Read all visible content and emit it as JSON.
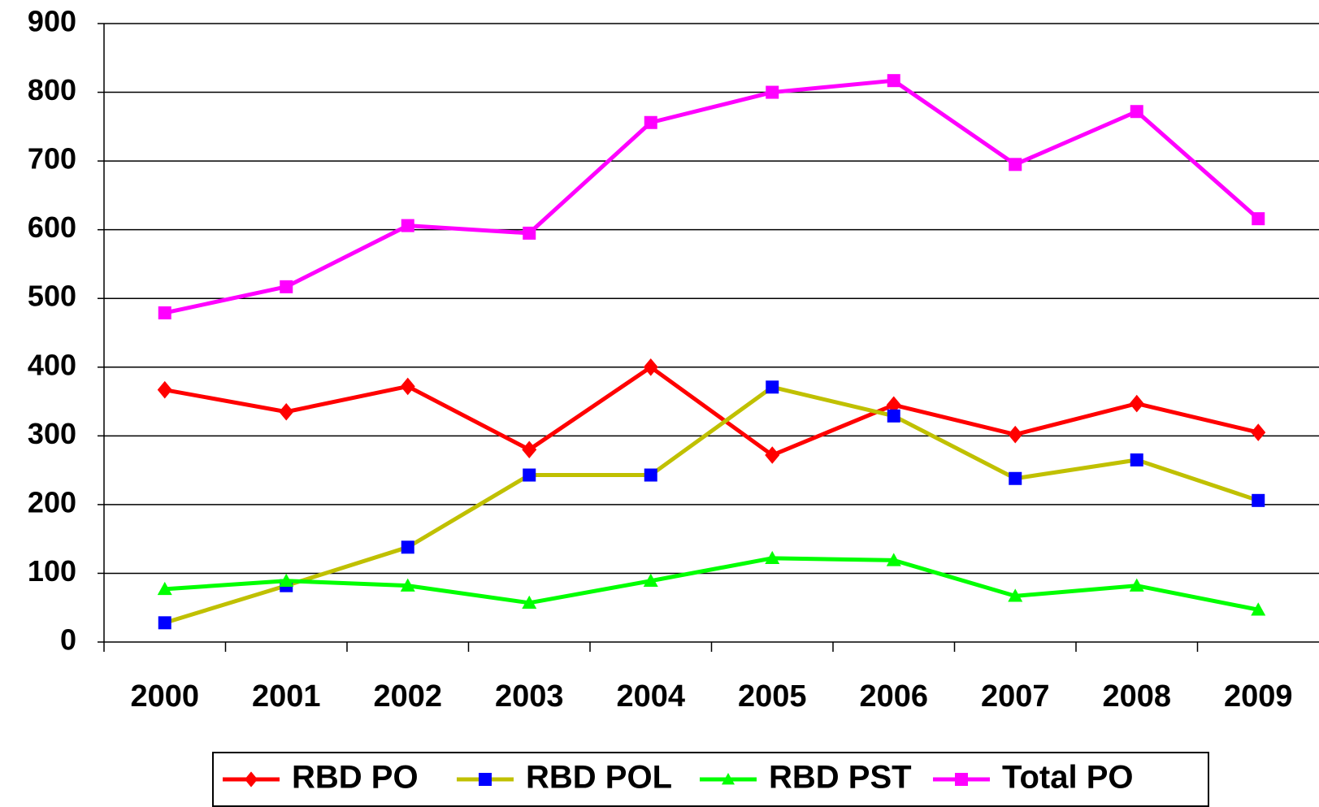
{
  "chart_data": {
    "type": "line",
    "categories": [
      "2000",
      "2001",
      "2002",
      "2003",
      "2004",
      "2005",
      "2006",
      "2007",
      "2008",
      "2009"
    ],
    "series": [
      {
        "name": "RBD PO",
        "color": "#ff0000",
        "marker": "diamond",
        "marker_color": "#ff0000",
        "values": [
          367,
          335,
          372,
          280,
          400,
          272,
          345,
          302,
          347,
          305
        ]
      },
      {
        "name": "RBD POL",
        "color": "#c0c000",
        "marker": "square",
        "marker_color": "#0000ff",
        "values": [
          28,
          82,
          138,
          243,
          243,
          371,
          329,
          238,
          265,
          206
        ]
      },
      {
        "name": "RBD PST",
        "color": "#00ff00",
        "marker": "triangle",
        "marker_color": "#00ff00",
        "values": [
          77,
          89,
          82,
          57,
          89,
          122,
          119,
          67,
          82,
          47
        ]
      },
      {
        "name": "Total PO",
        "color": "#ff00ff",
        "marker": "square",
        "marker_color": "#ff00ff",
        "values": [
          479,
          517,
          606,
          595,
          756,
          800,
          817,
          695,
          772,
          616
        ]
      }
    ],
    "ylim": [
      0,
      900
    ],
    "yticks": [
      0,
      100,
      200,
      300,
      400,
      500,
      600,
      700,
      800,
      900
    ],
    "grid": true,
    "legend": "bottom"
  }
}
